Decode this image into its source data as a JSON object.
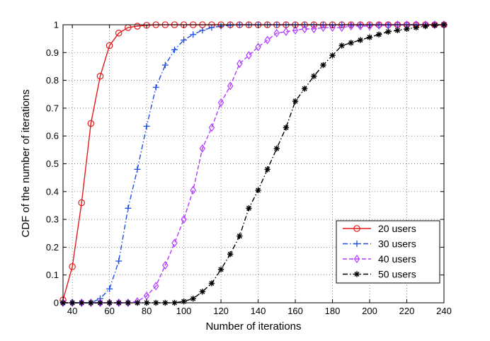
{
  "chart_data": {
    "type": "line",
    "title": "",
    "xlabel": "Number of iterations",
    "ylabel": "CDF of the number of iterations",
    "xlim": [
      35,
      240
    ],
    "ylim": [
      0,
      1
    ],
    "xticks": [
      40,
      60,
      80,
      100,
      120,
      140,
      160,
      180,
      200,
      220,
      240
    ],
    "yticks": [
      0,
      0.1,
      0.2,
      0.3,
      0.4,
      0.5,
      0.6,
      0.7,
      0.8,
      0.9,
      1
    ],
    "grid": true,
    "legend_position": "bottom-right",
    "series": [
      {
        "name": "20 users",
        "color": "#e31a1c",
        "line_style": "solid",
        "marker": "circle",
        "x": [
          35,
          40,
          45,
          50,
          55,
          60,
          65,
          70,
          75,
          80,
          85,
          90,
          95,
          100,
          105,
          110,
          115,
          120,
          125,
          130,
          135,
          140,
          145,
          150,
          155,
          160,
          165,
          170,
          175,
          180,
          185,
          190,
          195,
          200,
          205,
          210,
          215,
          220,
          225,
          230,
          235,
          240
        ],
        "y": [
          0.01,
          0.13,
          0.36,
          0.645,
          0.815,
          0.925,
          0.97,
          0.99,
          0.995,
          0.998,
          1,
          1,
          1,
          1,
          1,
          1,
          1,
          1,
          1,
          1,
          1,
          1,
          1,
          1,
          1,
          1,
          1,
          1,
          1,
          1,
          1,
          1,
          1,
          1,
          1,
          1,
          1,
          1,
          1,
          1,
          1,
          1
        ]
      },
      {
        "name": "30 users",
        "color": "#1f4ee0",
        "line_style": "dashdot",
        "marker": "plus",
        "x": [
          35,
          40,
          45,
          50,
          55,
          60,
          65,
          70,
          75,
          80,
          85,
          90,
          95,
          100,
          105,
          110,
          115,
          120,
          125,
          130,
          135,
          140,
          145,
          150,
          155,
          160,
          165,
          170,
          175,
          180,
          185,
          190,
          195,
          200,
          205,
          210,
          215,
          220,
          225,
          230,
          235,
          240
        ],
        "y": [
          0,
          0,
          0,
          0,
          0.015,
          0.05,
          0.15,
          0.34,
          0.48,
          0.635,
          0.775,
          0.855,
          0.91,
          0.945,
          0.965,
          0.98,
          0.99,
          0.995,
          0.998,
          1,
          1,
          1,
          1,
          1,
          1,
          1,
          1,
          1,
          1,
          1,
          1,
          1,
          1,
          1,
          1,
          1,
          1,
          1,
          1,
          1,
          1,
          1
        ]
      },
      {
        "name": "40 users",
        "color": "#b23bff",
        "line_style": "dashed",
        "marker": "diamond",
        "x": [
          35,
          40,
          45,
          50,
          55,
          60,
          65,
          70,
          75,
          80,
          85,
          90,
          95,
          100,
          105,
          110,
          115,
          120,
          125,
          130,
          135,
          140,
          145,
          150,
          155,
          160,
          165,
          170,
          175,
          180,
          185,
          190,
          195,
          200,
          205,
          210,
          215,
          220,
          225,
          230,
          235,
          240
        ],
        "y": [
          0,
          0,
          0,
          0,
          0,
          0,
          0,
          0,
          0.005,
          0.025,
          0.06,
          0.135,
          0.215,
          0.3,
          0.405,
          0.555,
          0.63,
          0.72,
          0.78,
          0.86,
          0.89,
          0.92,
          0.945,
          0.97,
          0.975,
          0.98,
          0.985,
          0.985,
          0.99,
          0.99,
          0.99,
          0.995,
          0.995,
          0.995,
          0.998,
          0.998,
          1,
          1,
          1,
          1,
          1,
          1
        ]
      },
      {
        "name": "50 users",
        "color": "#000000",
        "line_style": "dashdot",
        "marker": "asterisk",
        "x": [
          35,
          40,
          45,
          50,
          55,
          60,
          65,
          70,
          75,
          80,
          85,
          90,
          95,
          100,
          105,
          110,
          115,
          120,
          125,
          130,
          135,
          140,
          145,
          150,
          155,
          160,
          165,
          170,
          175,
          180,
          185,
          190,
          195,
          200,
          205,
          210,
          215,
          220,
          225,
          230,
          235,
          240
        ],
        "y": [
          0,
          0,
          0,
          0,
          0,
          0,
          0,
          0,
          0,
          0,
          0,
          0,
          0,
          0.005,
          0.015,
          0.04,
          0.07,
          0.12,
          0.175,
          0.24,
          0.34,
          0.405,
          0.48,
          0.555,
          0.63,
          0.725,
          0.77,
          0.815,
          0.855,
          0.89,
          0.925,
          0.935,
          0.945,
          0.955,
          0.965,
          0.975,
          0.98,
          0.985,
          0.99,
          0.995,
          0.998,
          1
        ]
      }
    ]
  }
}
